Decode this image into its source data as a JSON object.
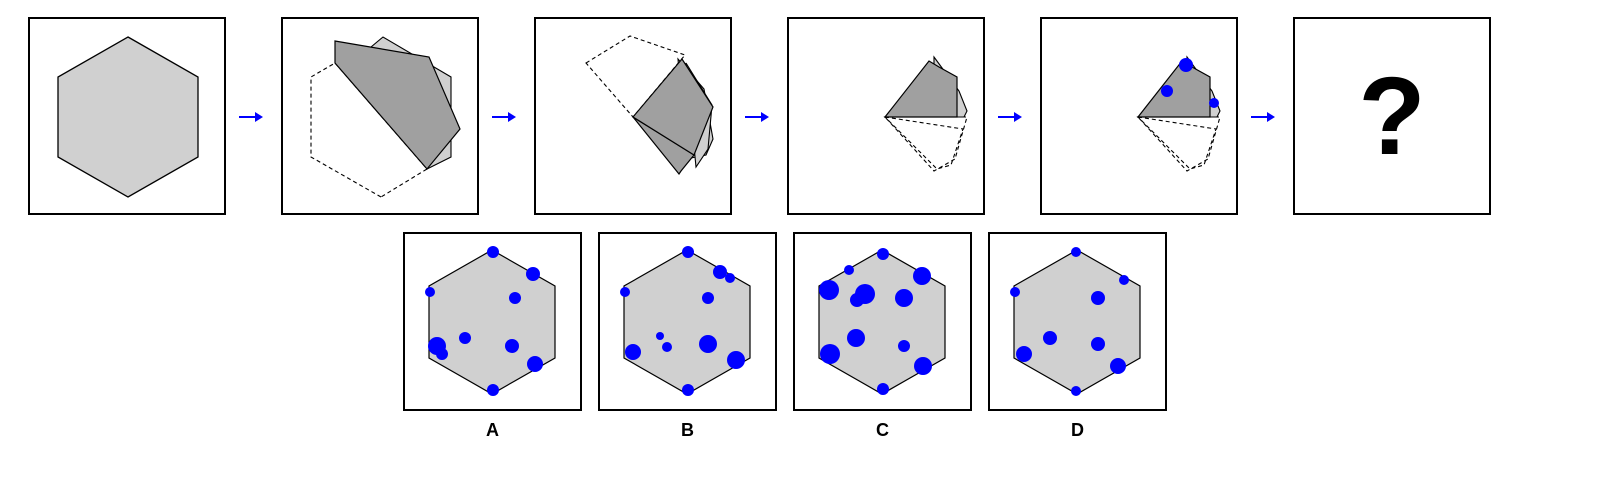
{
  "colors": {
    "paper": "#d0d0d0",
    "folded_paper": "#a0a0a0",
    "hole": "#0000ff",
    "arrow": "#0000ff",
    "outline": "#000000"
  },
  "sequence": {
    "steps": [
      "unfolded-hexagon",
      "fold-1",
      "fold-2",
      "fold-3",
      "punch-holes"
    ],
    "question_mark": "?"
  },
  "options": [
    {
      "label": "A"
    },
    {
      "label": "B"
    },
    {
      "label": "C"
    },
    {
      "label": "D"
    }
  ]
}
